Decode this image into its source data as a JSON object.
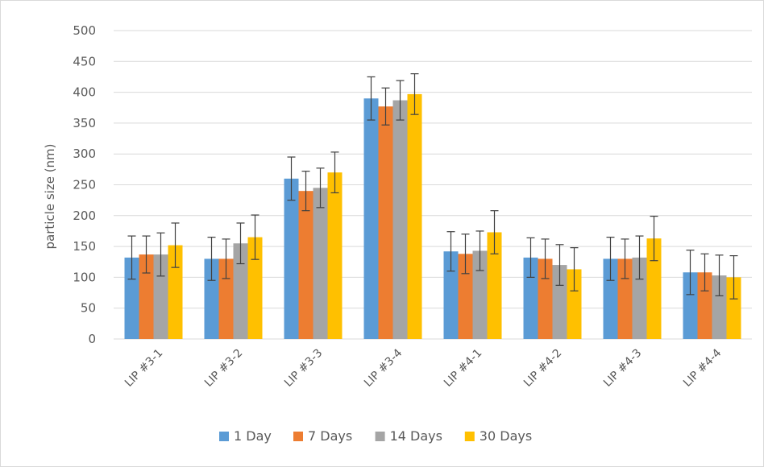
{
  "chart_data": {
    "type": "bar",
    "title": "",
    "xlabel": "",
    "ylabel": "particle size (nm)",
    "ylim": [
      0,
      500
    ],
    "yticks": [
      0,
      50,
      100,
      150,
      200,
      250,
      300,
      350,
      400,
      450,
      500
    ],
    "grid": true,
    "legend_position": "bottom",
    "categories": [
      "LIP #3-1",
      "LIP #3-2",
      "LIP #3-3",
      "LIP #3-4",
      "LIP #4-1",
      "LIP #4-2",
      "LIP #4-3",
      "LIP #4-4"
    ],
    "series": [
      {
        "name": "1 Day",
        "color": "#5b9bd5",
        "values": [
          132,
          130,
          260,
          390,
          142,
          132,
          130,
          108
        ],
        "errors": [
          35,
          35,
          35,
          35,
          32,
          32,
          35,
          36
        ]
      },
      {
        "name": "7 Days",
        "color": "#ed7d31",
        "values": [
          137,
          130,
          240,
          377,
          138,
          130,
          130,
          108
        ],
        "errors": [
          30,
          32,
          32,
          30,
          32,
          32,
          32,
          30
        ]
      },
      {
        "name": "14 Days",
        "color": "#a5a5a5",
        "values": [
          137,
          155,
          245,
          387,
          143,
          120,
          132,
          103
        ],
        "errors": [
          35,
          33,
          32,
          32,
          32,
          33,
          35,
          33
        ]
      },
      {
        "name": "30 Days",
        "color": "#ffc000",
        "values": [
          152,
          165,
          270,
          397,
          173,
          113,
          163,
          100
        ],
        "errors": [
          36,
          36,
          33,
          33,
          35,
          35,
          36,
          35
        ]
      }
    ]
  }
}
